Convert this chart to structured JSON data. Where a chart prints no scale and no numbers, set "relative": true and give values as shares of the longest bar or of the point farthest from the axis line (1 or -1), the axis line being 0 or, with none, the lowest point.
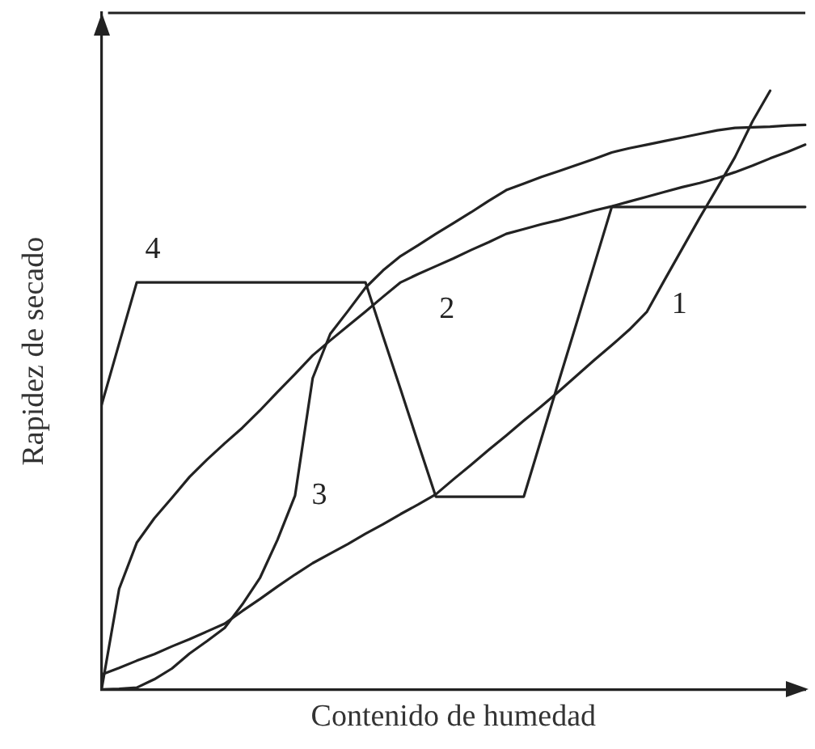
{
  "chart_data": {
    "type": "line",
    "relative": true,
    "xlabel": "Contenido de humedad",
    "ylabel": "Rapidez de secado",
    "marker": "none",
    "line_style": "solid",
    "legend": false,
    "categories": [
      null,
      null,
      null,
      null,
      null,
      null,
      null,
      null,
      null,
      null,
      null,
      null,
      null,
      null,
      null,
      null,
      null,
      null,
      null,
      null,
      null,
      null,
      null,
      null,
      null,
      null,
      null,
      null,
      null,
      null,
      null,
      null,
      null,
      null,
      null,
      null,
      null,
      null,
      null,
      null,
      null
    ],
    "series": [
      {
        "name": "1",
        "color": "#222222",
        "values": [
          0.025,
          0.036,
          0.048,
          0.059,
          0.072,
          0.084,
          0.097,
          0.11,
          0.131,
          0.151,
          0.172,
          0.192,
          0.211,
          0.227,
          0.243,
          0.26,
          0.276,
          0.293,
          0.309,
          0.326,
          0.351,
          0.375,
          0.4,
          0.424,
          0.449,
          0.473,
          0.498,
          0.524,
          0.55,
          0.575,
          0.601,
          0.631,
          0.684,
          0.736,
          0.788,
          0.838,
          0.889,
          0.949,
          1,
          null,
          null
        ]
      },
      {
        "name": "2",
        "color": "#222222",
        "values": [
          0,
          0.168,
          0.245,
          0.286,
          0.32,
          0.355,
          0.384,
          0.411,
          0.437,
          0.466,
          0.497,
          0.527,
          0.558,
          0.583,
          0.607,
          0.631,
          0.656,
          0.68,
          0.694,
          0.707,
          0.72,
          0.734,
          0.747,
          0.761,
          0.769,
          0.777,
          0.784,
          0.792,
          0.8,
          0.807,
          0.815,
          0.823,
          0.831,
          0.839,
          0.846,
          0.854,
          0.864,
          0.875,
          0.887,
          0.898,
          0.91
        ]
      },
      {
        "name": "3",
        "color": "#222222",
        "values": [
          0,
          0.001,
          0.003,
          0.017,
          0.035,
          0.06,
          0.081,
          0.103,
          0.142,
          0.186,
          0.25,
          0.324,
          0.52,
          0.594,
          0.632,
          0.671,
          0.7,
          0.724,
          0.742,
          0.761,
          0.779,
          0.797,
          0.816,
          0.834,
          0.845,
          0.856,
          0.866,
          0.876,
          0.886,
          0.897,
          0.904,
          0.91,
          0.916,
          0.922,
          0.928,
          0.934,
          0.938,
          0.939,
          0.94,
          0.942,
          0.943
        ]
      },
      {
        "name": "4",
        "color": "#222222",
        "values": [
          0.475,
          0.578,
          0.68,
          0.68,
          0.68,
          0.68,
          0.68,
          0.68,
          0.68,
          0.68,
          0.68,
          0.68,
          0.68,
          0.68,
          0.68,
          0.68,
          0.59,
          0.501,
          0.411,
          0.322,
          0.322,
          0.322,
          0.322,
          0.322,
          0.322,
          0.419,
          0.516,
          0.612,
          0.709,
          0.806,
          0.806,
          0.806,
          0.806,
          0.806,
          0.806,
          0.806,
          0.806,
          0.806,
          0.806,
          0.806,
          0.806
        ]
      }
    ]
  }
}
